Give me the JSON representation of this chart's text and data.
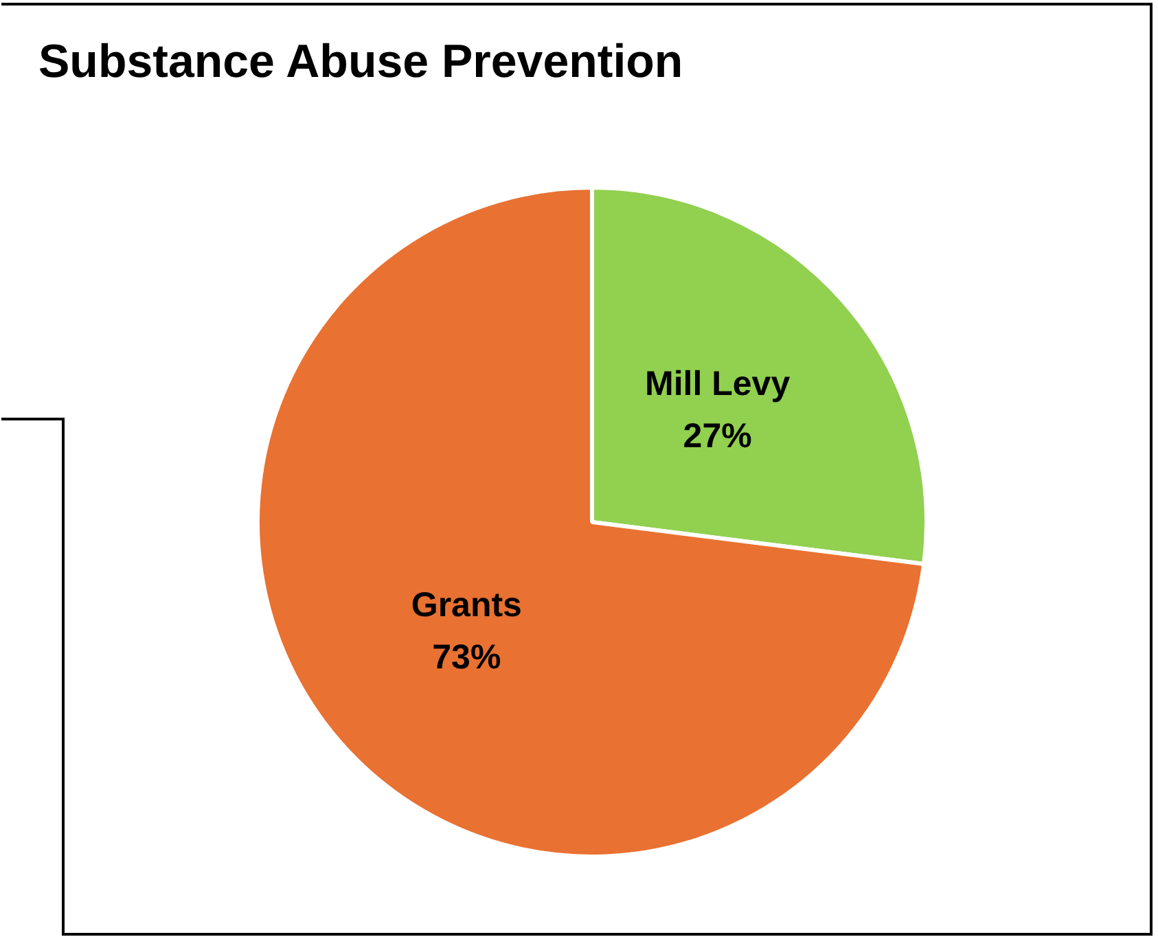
{
  "chart_data": {
    "type": "pie",
    "title": "Substance Abuse Prevention",
    "categories": [
      "Mill Levy",
      "Grants"
    ],
    "values": [
      27,
      73
    ],
    "colors": [
      "#92d050",
      "#e97132"
    ],
    "value_labels": [
      "27%",
      "73%"
    ],
    "legend": false
  }
}
